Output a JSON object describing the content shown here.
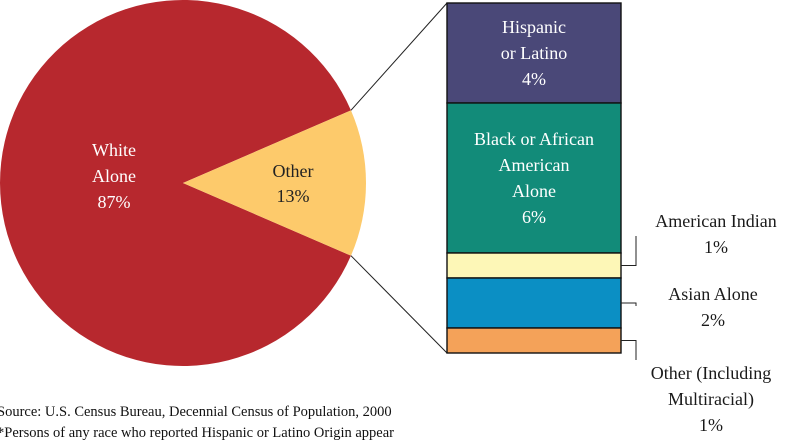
{
  "chart_data": {
    "type": "pie",
    "pie": {
      "slices": [
        {
          "label_lines": [
            "White",
            "Alone",
            "87%"
          ],
          "value": 87,
          "color": "#b7282e",
          "text_color": "#ffffff"
        },
        {
          "label_lines": [
            "Other",
            "13%"
          ],
          "value": 13,
          "color": "#fdca6b",
          "text_color": "#222222"
        }
      ]
    },
    "breakdown": {
      "of_slice": "Other",
      "segments": [
        {
          "label_lines": [
            "Hispanic",
            "or Latino",
            "4%"
          ],
          "value": 4,
          "color": "#4a4878",
          "text_color": "#ffffff",
          "label_position": "inside"
        },
        {
          "label_lines": [
            "Black or African",
            "American",
            "Alone",
            "6%"
          ],
          "value": 6,
          "color": "#128b79",
          "text_color": "#ffffff",
          "label_position": "inside"
        },
        {
          "label_lines": [
            "American Indian",
            "1%"
          ],
          "value": 1,
          "color": "#fdf7b7",
          "text_color": "#1a1a1a",
          "label_position": "outside"
        },
        {
          "label_lines": [
            "Asian Alone",
            "2%"
          ],
          "value": 2,
          "color": "#0b8fc4",
          "text_color": "#1a1a1a",
          "label_position": "outside"
        },
        {
          "label_lines": [
            "Other (Including",
            "Multiracial)",
            "1%"
          ],
          "value": 1,
          "color": "#f4a259",
          "text_color": "#1a1a1a",
          "label_position": "outside"
        }
      ]
    }
  },
  "footnotes": {
    "source": "Source: U.S. Census Bureau, Decennial Census of Population, 2000",
    "note": "*Persons of any race who reported Hispanic or Latino Origin appear"
  }
}
